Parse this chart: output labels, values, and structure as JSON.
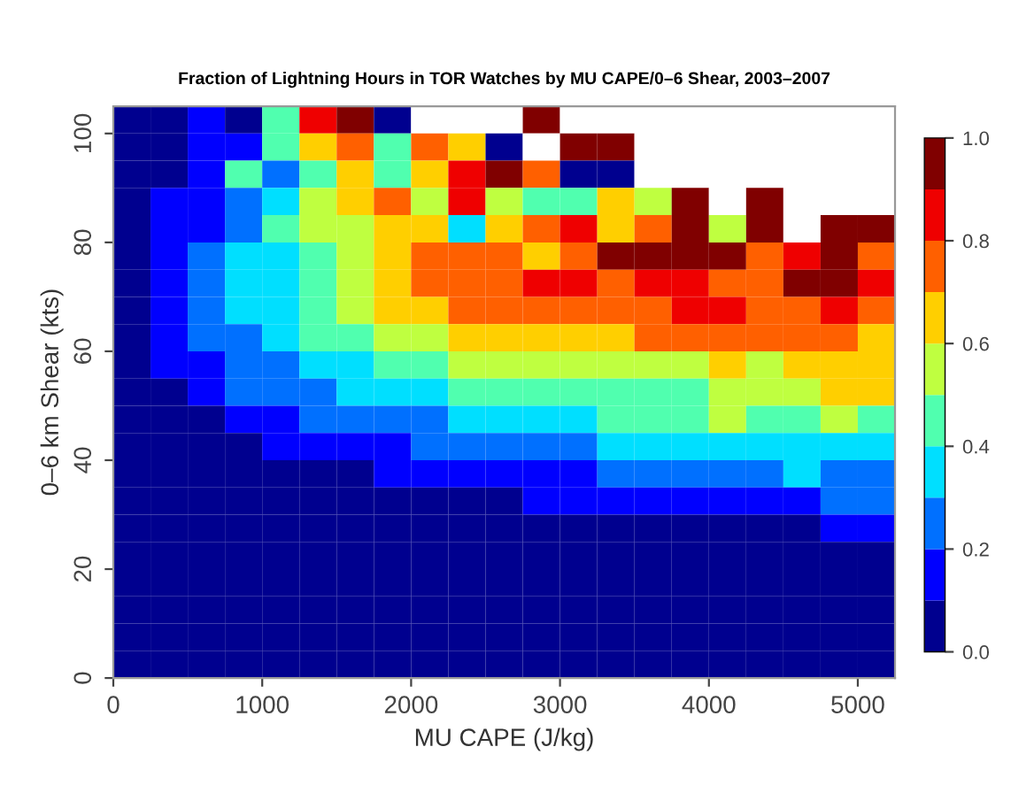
{
  "chart_data": {
    "type": "heatmap",
    "title": "Fraction of Lightning Hours in TOR Watches by MU CAPE/0–6 Shear, 2003–2007",
    "xlabel": "MU CAPE (J/kg)",
    "ylabel": "0–6 km Shear (kts)",
    "xlim": [
      0,
      5250
    ],
    "ylim": [
      0,
      105
    ],
    "xticks": [
      0,
      1000,
      2000,
      3000,
      4000,
      5000
    ],
    "yticks": [
      0,
      20,
      40,
      60,
      80,
      100
    ],
    "clim": [
      0,
      1
    ],
    "cticks": [
      {
        "value": 0,
        "label": "0.0"
      },
      {
        "value": 0.2,
        "label": "0.2"
      },
      {
        "value": 0.4,
        "label": "0.4"
      },
      {
        "value": 0.6,
        "label": "0.6"
      },
      {
        "value": 0.8,
        "label": "0.8"
      },
      {
        "value": 1,
        "label": "1.0"
      }
    ],
    "colors": [
      "#00008f",
      "#0000ff",
      "#0070ff",
      "#00dfff",
      "#50ffaf",
      "#bfff40",
      "#ffcf00",
      "#ff6000",
      "#ef0000",
      "#800000"
    ],
    "cells": [
      [
        0.05,
        0.05,
        0.15,
        0.05,
        0.45,
        0.85,
        0.95,
        0.05,
        null,
        null,
        null,
        0.95,
        null,
        null,
        null,
        null,
        null,
        null,
        null,
        null,
        null
      ],
      [
        0.05,
        0.05,
        0.15,
        0.15,
        0.45,
        0.65,
        0.75,
        0.45,
        0.75,
        0.65,
        0.05,
        null,
        0.95,
        0.95,
        null,
        null,
        null,
        null,
        null,
        null,
        null
      ],
      [
        0.05,
        0.05,
        0.15,
        0.45,
        0.25,
        0.45,
        0.65,
        0.45,
        0.65,
        0.85,
        0.95,
        0.75,
        0.05,
        0.05,
        null,
        null,
        null,
        null,
        null,
        null,
        null
      ],
      [
        0.05,
        0.15,
        0.15,
        0.25,
        0.35,
        0.55,
        0.65,
        0.75,
        0.55,
        0.85,
        0.55,
        0.45,
        0.45,
        0.65,
        0.55,
        0.95,
        null,
        0.95,
        null,
        null,
        null
      ],
      [
        0.05,
        0.15,
        0.15,
        0.25,
        0.45,
        0.55,
        0.55,
        0.65,
        0.65,
        0.35,
        0.65,
        0.75,
        0.85,
        0.65,
        0.75,
        0.95,
        0.55,
        0.95,
        null,
        0.95,
        0.95
      ],
      [
        0.05,
        0.15,
        0.25,
        0.35,
        0.35,
        0.45,
        0.55,
        0.65,
        0.75,
        0.75,
        0.75,
        0.65,
        0.75,
        0.95,
        0.95,
        0.95,
        0.95,
        0.75,
        0.85,
        0.95,
        0.75
      ],
      [
        0.05,
        0.15,
        0.25,
        0.35,
        0.35,
        0.45,
        0.55,
        0.65,
        0.75,
        0.75,
        0.75,
        0.85,
        0.85,
        0.75,
        0.85,
        0.85,
        0.75,
        0.75,
        0.95,
        0.95,
        0.85
      ],
      [
        0.05,
        0.15,
        0.25,
        0.35,
        0.35,
        0.45,
        0.55,
        0.65,
        0.65,
        0.75,
        0.75,
        0.75,
        0.75,
        0.75,
        0.75,
        0.85,
        0.85,
        0.75,
        0.75,
        0.85,
        0.75
      ],
      [
        0.05,
        0.15,
        0.25,
        0.25,
        0.35,
        0.45,
        0.45,
        0.55,
        0.55,
        0.65,
        0.65,
        0.65,
        0.65,
        0.65,
        0.75,
        0.75,
        0.75,
        0.75,
        0.75,
        0.75,
        0.65
      ],
      [
        0.05,
        0.15,
        0.15,
        0.25,
        0.25,
        0.35,
        0.35,
        0.45,
        0.45,
        0.55,
        0.55,
        0.55,
        0.55,
        0.55,
        0.55,
        0.55,
        0.65,
        0.55,
        0.65,
        0.65,
        0.65
      ],
      [
        0.05,
        0.05,
        0.15,
        0.25,
        0.25,
        0.25,
        0.35,
        0.35,
        0.35,
        0.45,
        0.45,
        0.45,
        0.45,
        0.45,
        0.45,
        0.45,
        0.55,
        0.55,
        0.55,
        0.65,
        0.65
      ],
      [
        0.05,
        0.05,
        0.05,
        0.15,
        0.15,
        0.25,
        0.25,
        0.25,
        0.25,
        0.35,
        0.35,
        0.35,
        0.35,
        0.45,
        0.45,
        0.45,
        0.55,
        0.45,
        0.45,
        0.55,
        0.45
      ],
      [
        0.05,
        0.05,
        0.05,
        0.05,
        0.15,
        0.15,
        0.15,
        0.15,
        0.25,
        0.25,
        0.25,
        0.25,
        0.25,
        0.35,
        0.35,
        0.35,
        0.35,
        0.35,
        0.35,
        0.35,
        0.35
      ],
      [
        0.05,
        0.05,
        0.05,
        0.05,
        0.05,
        0.05,
        0.05,
        0.15,
        0.15,
        0.15,
        0.15,
        0.15,
        0.15,
        0.25,
        0.25,
        0.25,
        0.25,
        0.25,
        0.35,
        0.25,
        0.25
      ],
      [
        0.05,
        0.05,
        0.05,
        0.05,
        0.05,
        0.05,
        0.05,
        0.05,
        0.05,
        0.05,
        0.05,
        0.15,
        0.15,
        0.15,
        0.15,
        0.15,
        0.15,
        0.15,
        0.15,
        0.25,
        0.25
      ],
      [
        0.05,
        0.05,
        0.05,
        0.05,
        0.05,
        0.05,
        0.05,
        0.05,
        0.05,
        0.05,
        0.05,
        0.05,
        0.05,
        0.05,
        0.05,
        0.05,
        0.05,
        0.05,
        0.05,
        0.15,
        0.15
      ],
      [
        0.05,
        0.05,
        0.05,
        0.05,
        0.05,
        0.05,
        0.05,
        0.05,
        0.05,
        0.05,
        0.05,
        0.05,
        0.05,
        0.05,
        0.05,
        0.05,
        0.05,
        0.05,
        0.05,
        0.05,
        0.05
      ],
      [
        0.05,
        0.05,
        0.05,
        0.05,
        0.05,
        0.05,
        0.05,
        0.05,
        0.05,
        0.05,
        0.05,
        0.05,
        0.05,
        0.05,
        0.05,
        0.05,
        0.05,
        0.05,
        0.05,
        0.05,
        0.05
      ],
      [
        0.05,
        0.05,
        0.05,
        0.05,
        0.05,
        0.05,
        0.05,
        0.05,
        0.05,
        0.05,
        0.05,
        0.05,
        0.05,
        0.05,
        0.05,
        0.05,
        0.05,
        0.05,
        0.05,
        0.05,
        0.05
      ],
      [
        0.05,
        0.05,
        0.05,
        0.05,
        0.05,
        0.05,
        0.05,
        0.05,
        0.05,
        0.05,
        0.05,
        0.05,
        0.05,
        0.05,
        0.05,
        0.05,
        0.05,
        0.05,
        0.05,
        0.05,
        0.05
      ],
      [
        0.05,
        0.05,
        0.05,
        0.05,
        0.05,
        0.05,
        0.05,
        0.05,
        0.05,
        0.05,
        0.05,
        0.05,
        0.05,
        0.05,
        0.05,
        0.05,
        0.05,
        0.05,
        0.05,
        0.05,
        0.05
      ]
    ]
  }
}
